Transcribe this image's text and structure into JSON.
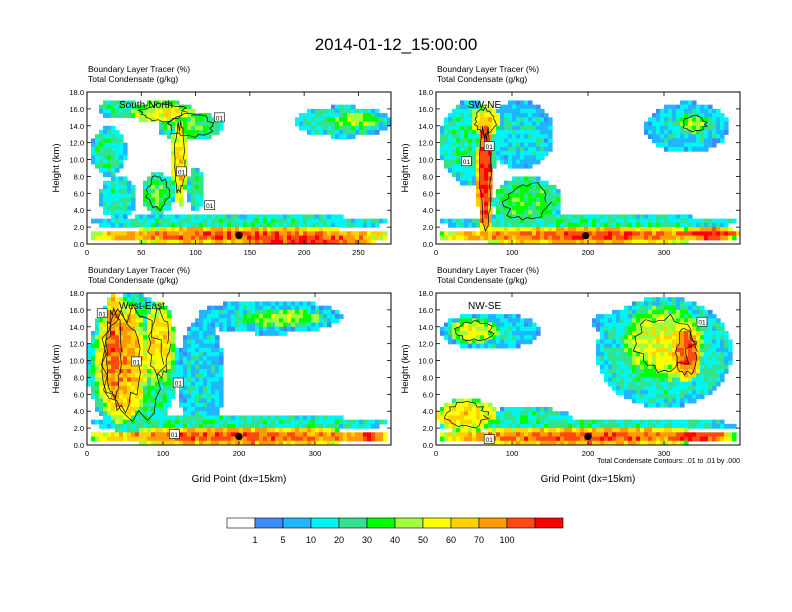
{
  "title": "2014-01-12_15:00:00",
  "colors": {
    "scale": [
      "#ffffff",
      "#3b8cf7",
      "#21b6ff",
      "#00f5f0",
      "#30e38c",
      "#00ff00",
      "#a2ff3c",
      "#ffff00",
      "#ffd200",
      "#ff9a00",
      "#ff4a14",
      "#ff0000"
    ],
    "contour": "#000000",
    "marker": "#000000"
  },
  "colorbar": {
    "labels": [
      "1",
      "5",
      "10",
      "20",
      "30",
      "40",
      "50",
      "60",
      "70",
      "100"
    ]
  },
  "footnote": "Total Condensate Contours: .01 to .01 by .000",
  "chart_data": [
    {
      "type": "heatmap",
      "panel": "south-north",
      "direction_label": "South-North",
      "title_lines": [
        "Boundary Layer Tracer    (%)",
        "Total Condensate    (g/kg)"
      ],
      "xlabel": "",
      "ylabel": "Height (km)",
      "xlim": [
        0,
        280
      ],
      "ylim": [
        0,
        18
      ],
      "x_ticks": [
        0,
        50,
        100,
        150,
        200,
        250
      ],
      "y_ticks": [
        "0.0",
        "2.0",
        "4.0",
        "6.0",
        "8.0",
        "10.0",
        "12.0",
        "14.0",
        "16.0",
        "18.0"
      ],
      "contour_labels": [
        {
          "text": "01",
          "x": 122,
          "y": 15.0
        },
        {
          "text": "01",
          "x": 87,
          "y": 8.6
        },
        {
          "text": "01",
          "x": 113,
          "y": 4.6
        }
      ],
      "marker": {
        "x": 140,
        "y": 1.0
      },
      "blobs": [
        {
          "x": 70,
          "y": 15.6,
          "w": 62,
          "h": 2.6,
          "c": 7
        },
        {
          "x": 95,
          "y": 14.0,
          "w": 60,
          "h": 3.5,
          "c": 5
        },
        {
          "x": 30,
          "y": 16.0,
          "w": 40,
          "h": 2.2,
          "c": 4
        },
        {
          "x": 85,
          "y": 10.0,
          "w": 14,
          "h": 11.0,
          "c": 8
        },
        {
          "x": 65,
          "y": 6.0,
          "w": 30,
          "h": 5.0,
          "c": 5
        },
        {
          "x": 20,
          "y": 11.0,
          "w": 32,
          "h": 6.0,
          "c": 4
        },
        {
          "x": 28,
          "y": 5.5,
          "w": 34,
          "h": 5.0,
          "c": 4
        },
        {
          "x": 100,
          "y": 6.5,
          "w": 16,
          "h": 5.0,
          "c": 4
        },
        {
          "x": 235,
          "y": 14.5,
          "w": 90,
          "h": 3.6,
          "c": 4
        },
        {
          "x": 245,
          "y": 14.6,
          "w": 50,
          "h": 1.8,
          "c": 6
        },
        {
          "x": 140,
          "y": 1.0,
          "w": 280,
          "h": 2.0,
          "c": 10
        },
        {
          "x": 140,
          "y": 2.6,
          "w": 280,
          "h": 1.8,
          "c": 4
        },
        {
          "x": 200,
          "y": 0.5,
          "w": 150,
          "h": 1.0,
          "c": 11
        }
      ]
    },
    {
      "type": "heatmap",
      "panel": "sw-ne",
      "direction_label": "SW-NE",
      "title_lines": [
        "Boundary Layer Tracer    (%)",
        "Total Condensate    (g/kg)"
      ],
      "xlabel": "",
      "ylabel": "Height (km)",
      "xlim": [
        0,
        400
      ],
      "ylim": [
        0,
        18
      ],
      "x_ticks": [
        0,
        100,
        200,
        300
      ],
      "y_ticks": [
        "0.0",
        "2.0",
        "4.0",
        "6.0",
        "8.0",
        "10.0",
        "12.0",
        "14.0",
        "16.0",
        "18.0"
      ],
      "contour_labels": [
        {
          "text": "01",
          "x": 70,
          "y": 11.6
        },
        {
          "text": "01",
          "x": 40,
          "y": 9.8
        }
      ],
      "marker": {
        "x": 197,
        "y": 1.0
      },
      "blobs": [
        {
          "x": 45,
          "y": 12.0,
          "w": 80,
          "h": 10.0,
          "c": 4
        },
        {
          "x": 110,
          "y": 13.0,
          "w": 90,
          "h": 8.0,
          "c": 3
        },
        {
          "x": 65,
          "y": 8.0,
          "w": 22,
          "h": 15.0,
          "c": 11
        },
        {
          "x": 65,
          "y": 14.5,
          "w": 40,
          "h": 4.0,
          "c": 8
        },
        {
          "x": 120,
          "y": 5.0,
          "w": 90,
          "h": 6.0,
          "c": 5
        },
        {
          "x": 330,
          "y": 13.8,
          "w": 110,
          "h": 6.0,
          "c": 3
        },
        {
          "x": 340,
          "y": 14.2,
          "w": 45,
          "h": 2.5,
          "c": 6
        },
        {
          "x": 200,
          "y": 1.0,
          "w": 400,
          "h": 2.0,
          "c": 10
        },
        {
          "x": 200,
          "y": 2.6,
          "w": 400,
          "h": 1.8,
          "c": 4
        },
        {
          "x": 360,
          "y": 1.2,
          "w": 80,
          "h": 1.5,
          "c": 11
        }
      ]
    },
    {
      "type": "heatmap",
      "panel": "west-east",
      "direction_label": "West-East",
      "title_lines": [
        "Boundary Layer Tracer    (%)",
        "Total Condensate    (g/kg)"
      ],
      "xlabel": "Grid Point (dx=15km)",
      "ylabel": "Height (km)",
      "xlim": [
        0,
        400
      ],
      "ylim": [
        0,
        18
      ],
      "x_ticks": [
        0,
        100,
        200,
        300
      ],
      "y_ticks": [
        "0.0",
        "2.0",
        "4.0",
        "6.0",
        "8.0",
        "10.0",
        "12.0",
        "14.0",
        "16.0",
        "18.0"
      ],
      "contour_labels": [
        {
          "text": "01",
          "x": 20,
          "y": 15.6
        },
        {
          "text": "01",
          "x": 65,
          "y": 9.9
        },
        {
          "text": "01",
          "x": 120,
          "y": 7.4
        },
        {
          "text": "01",
          "x": 115,
          "y": 1.3
        }
      ],
      "marker": {
        "x": 200,
        "y": 1.0
      },
      "blobs": [
        {
          "x": 60,
          "y": 9.5,
          "w": 120,
          "h": 17.0,
          "c": 5
        },
        {
          "x": 45,
          "y": 10.0,
          "w": 70,
          "h": 15.0,
          "c": 9
        },
        {
          "x": 35,
          "y": 11.0,
          "w": 28,
          "h": 14.0,
          "c": 10
        },
        {
          "x": 95,
          "y": 12.0,
          "w": 40,
          "h": 10.0,
          "c": 8
        },
        {
          "x": 150,
          "y": 8.0,
          "w": 60,
          "h": 14.0,
          "c": 3
        },
        {
          "x": 240,
          "y": 15.2,
          "w": 190,
          "h": 4.0,
          "c": 3
        },
        {
          "x": 260,
          "y": 15.0,
          "w": 110,
          "h": 2.0,
          "c": 6
        },
        {
          "x": 200,
          "y": 1.0,
          "w": 400,
          "h": 2.0,
          "c": 10
        },
        {
          "x": 200,
          "y": 2.6,
          "w": 400,
          "h": 1.8,
          "c": 4
        },
        {
          "x": 370,
          "y": 1.0,
          "w": 50,
          "h": 1.4,
          "c": 11
        }
      ]
    },
    {
      "type": "heatmap",
      "panel": "nw-se",
      "direction_label": "NW-SE",
      "title_lines": [
        "Boundary Layer Tracer    (%)",
        "Total Condensate    (g/kg)"
      ],
      "xlabel": "Grid Point (dx=15km)",
      "ylabel": "Height (km)",
      "xlim": [
        0,
        400
      ],
      "ylim": [
        0,
        18
      ],
      "x_ticks": [
        0,
        100,
        200,
        300
      ],
      "y_ticks": [
        "0.0",
        "2.0",
        "4.0",
        "6.0",
        "8.0",
        "10.0",
        "12.0",
        "14.0",
        "16.0",
        "18.0"
      ],
      "contour_labels": [
        {
          "text": "01",
          "x": 350,
          "y": 14.6
        },
        {
          "text": "01",
          "x": 70,
          "y": 0.7
        }
      ],
      "marker": {
        "x": 200,
        "y": 1.0
      },
      "blobs": [
        {
          "x": 70,
          "y": 13.5,
          "w": 130,
          "h": 4.5,
          "c": 3
        },
        {
          "x": 50,
          "y": 13.5,
          "w": 70,
          "h": 3.0,
          "c": 7
        },
        {
          "x": 40,
          "y": 3.5,
          "w": 80,
          "h": 4.0,
          "c": 8
        },
        {
          "x": 120,
          "y": 3.0,
          "w": 120,
          "h": 3.0,
          "c": 4
        },
        {
          "x": 300,
          "y": 11.0,
          "w": 180,
          "h": 13.0,
          "c": 4
        },
        {
          "x": 300,
          "y": 12.0,
          "w": 110,
          "h": 9.0,
          "c": 7
        },
        {
          "x": 330,
          "y": 11.0,
          "w": 40,
          "h": 7.0,
          "c": 10
        },
        {
          "x": 260,
          "y": 14.5,
          "w": 110,
          "h": 3.0,
          "c": 3
        },
        {
          "x": 200,
          "y": 1.0,
          "w": 400,
          "h": 2.0,
          "c": 10
        },
        {
          "x": 200,
          "y": 2.4,
          "w": 400,
          "h": 1.6,
          "c": 4
        },
        {
          "x": 340,
          "y": 1.0,
          "w": 100,
          "h": 1.4,
          "c": 11
        }
      ]
    }
  ]
}
